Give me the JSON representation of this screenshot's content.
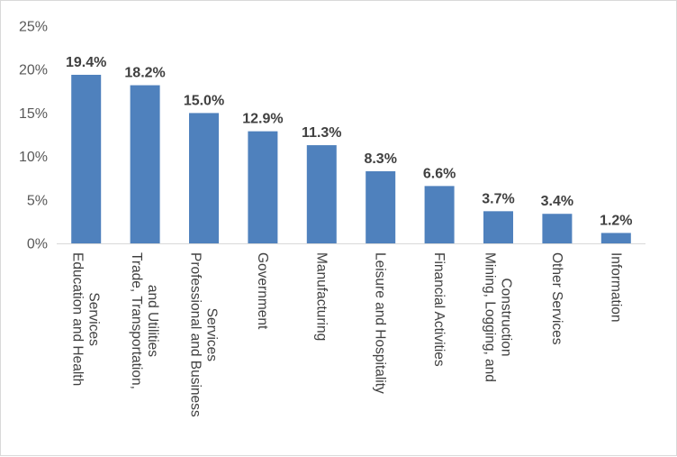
{
  "chart_data": {
    "type": "bar",
    "title": "",
    "xlabel": "",
    "ylabel": "",
    "ylim": [
      0,
      25
    ],
    "yticks": [
      "0%",
      "5%",
      "10%",
      "15%",
      "20%",
      "25%"
    ],
    "grid": false,
    "legend": "none",
    "bar_color": "#4f81bd",
    "categories": [
      [
        "Education and Health",
        "Services"
      ],
      [
        "Trade, Transportation,",
        "and Utilities"
      ],
      [
        "Professional and Business",
        "Services"
      ],
      [
        "Government"
      ],
      [
        "Manufacturing"
      ],
      [
        "Leisure and Hospitality"
      ],
      [
        "Financial Activities"
      ],
      [
        "Mining, Logging, and",
        "Construction"
      ],
      [
        "Other Services"
      ],
      [
        "Information"
      ]
    ],
    "values": [
      19.4,
      18.2,
      15.0,
      12.9,
      11.3,
      8.3,
      6.6,
      3.7,
      3.4,
      1.2
    ],
    "data_labels": [
      "19.4%",
      "18.2%",
      "15.0%",
      "12.9%",
      "11.3%",
      "8.3%",
      "6.6%",
      "3.7%",
      "3.4%",
      "1.2%"
    ]
  }
}
